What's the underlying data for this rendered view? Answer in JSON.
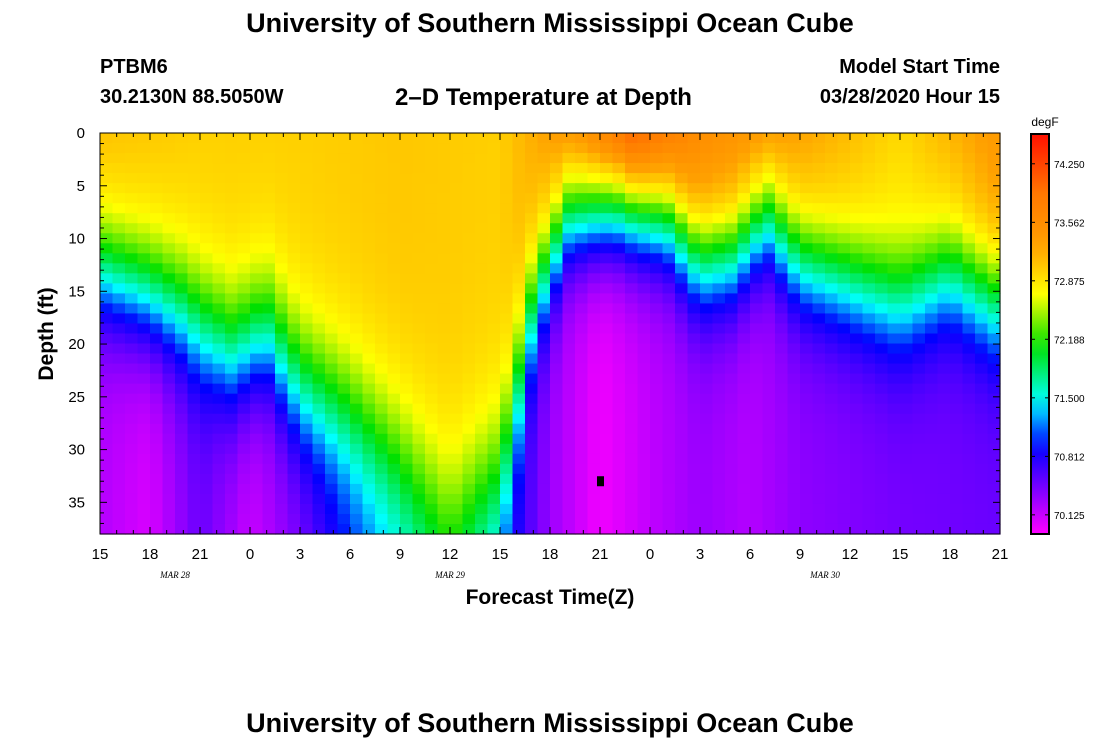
{
  "header": {
    "title": "University of Southern Mississippi Ocean Cube",
    "station": "PTBM6",
    "coords": "30.2130N 88.5050W",
    "subtitle": "2–D Temperature at Depth",
    "model_start_label": "Model Start Time",
    "model_start_value": "03/28/2020 Hour 15"
  },
  "footer": {
    "title": "University of Southern Mississippi Ocean Cube"
  },
  "chart_data": {
    "type": "heatmap",
    "title": "2–D Temperature at Depth",
    "xlabel": "Forecast Time(Z)",
    "ylabel": "Depth (ft)",
    "x_range_hours": [
      0,
      54
    ],
    "x_tick_labels": [
      "15",
      "18",
      "21",
      "0",
      "3",
      "6",
      "9",
      "12",
      "15",
      "18",
      "21",
      "0",
      "3",
      "6",
      "9",
      "12",
      "15",
      "18",
      "21"
    ],
    "date_labels": [
      {
        "label": "MAR 28",
        "hour": 4.5
      },
      {
        "label": "MAR 29",
        "hour": 21
      },
      {
        "label": "MAR 30",
        "hour": 43.5
      }
    ],
    "y_range_ft": [
      0,
      38
    ],
    "y_tick_labels": [
      0,
      5,
      10,
      15,
      20,
      25,
      30,
      35
    ],
    "colorbar": {
      "unit": "degF",
      "min": 69.9,
      "max": 74.6,
      "tick_values": [
        "74.250",
        "73.562",
        "72.875",
        "72.188",
        "71.500",
        "70.812",
        "70.125"
      ]
    },
    "marker": {
      "hour": 30,
      "depth_ft": 33
    },
    "surface_temp_degF": [
      {
        "hour": 0,
        "t": 73.1
      },
      {
        "hour": 6,
        "t": 73.0
      },
      {
        "hour": 12,
        "t": 73.0
      },
      {
        "hour": 18,
        "t": 73.05
      },
      {
        "hour": 24,
        "t": 73.0
      },
      {
        "hour": 29,
        "t": 73.55
      },
      {
        "hour": 32,
        "t": 74.2
      },
      {
        "hour": 36,
        "t": 73.6
      },
      {
        "hour": 42,
        "t": 73.3
      },
      {
        "hour": 48,
        "t": 72.95
      },
      {
        "hour": 54,
        "t": 73.4
      }
    ],
    "thermocline_depth_ft": [
      {
        "hour": 0,
        "d": 13
      },
      {
        "hour": 5,
        "d": 17
      },
      {
        "hour": 8,
        "d": 21
      },
      {
        "hour": 10,
        "d": 19
      },
      {
        "hour": 12,
        "d": 24
      },
      {
        "hour": 15,
        "d": 27
      },
      {
        "hour": 18,
        "d": 31
      },
      {
        "hour": 21,
        "d": 36
      },
      {
        "hour": 24,
        "d": 33
      },
      {
        "hour": 26,
        "d": 16
      },
      {
        "hour": 28,
        "d": 8
      },
      {
        "hour": 31,
        "d": 7
      },
      {
        "hour": 34,
        "d": 8
      },
      {
        "hour": 36,
        "d": 12
      },
      {
        "hour": 38,
        "d": 11.5
      },
      {
        "hour": 40,
        "d": 8
      },
      {
        "hour": 42,
        "d": 12
      },
      {
        "hour": 45,
        "d": 14
      },
      {
        "hour": 48,
        "d": 16
      },
      {
        "hour": 51,
        "d": 13
      },
      {
        "hour": 54,
        "d": 16
      }
    ],
    "bottom_temp_degF": [
      {
        "hour": 0,
        "t": 70.2
      },
      {
        "hour": 3,
        "t": 70.05
      },
      {
        "hour": 6,
        "t": 70.5
      },
      {
        "hour": 9,
        "t": 70.1
      },
      {
        "hour": 12,
        "t": 70.4
      },
      {
        "hour": 15,
        "t": 70.9
      },
      {
        "hour": 18,
        "t": 71.3
      },
      {
        "hour": 21,
        "t": 71.7
      },
      {
        "hour": 24,
        "t": 71.0
      },
      {
        "hour": 27,
        "t": 70.3
      },
      {
        "hour": 30,
        "t": 69.95
      },
      {
        "hour": 33,
        "t": 70.15
      },
      {
        "hour": 36,
        "t": 70.3
      },
      {
        "hour": 39,
        "t": 70.2
      },
      {
        "hour": 42,
        "t": 70.35
      },
      {
        "hour": 48,
        "t": 70.45
      },
      {
        "hour": 54,
        "t": 70.5
      }
    ]
  }
}
